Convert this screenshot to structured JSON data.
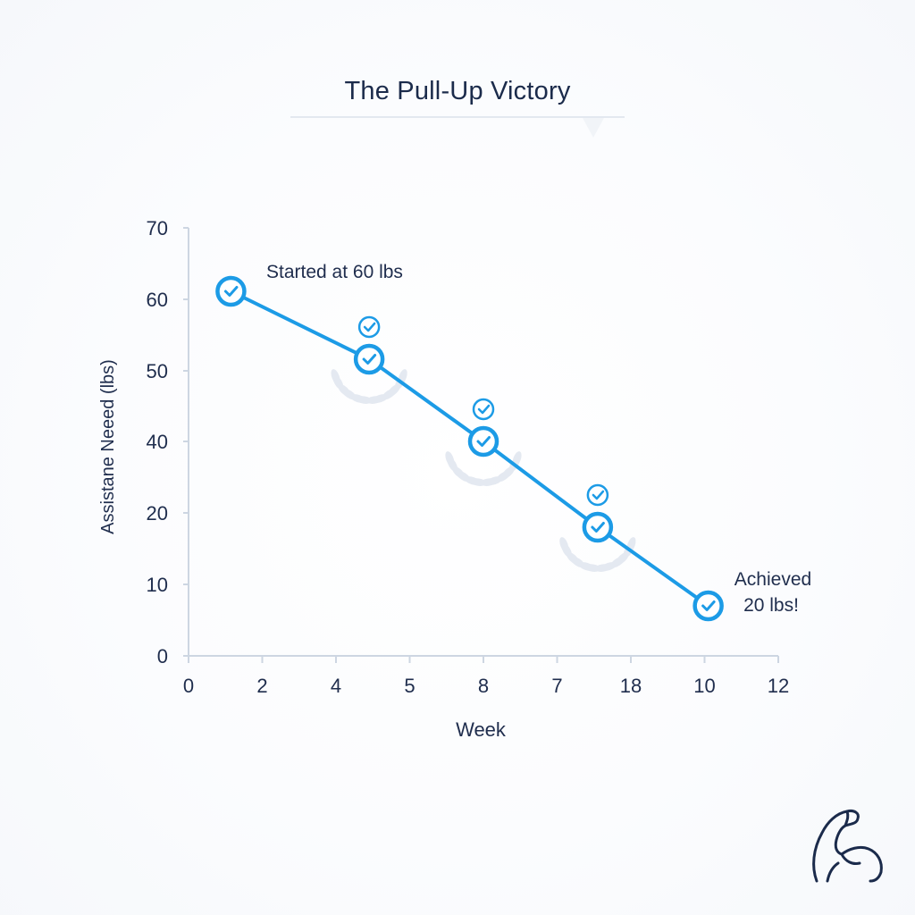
{
  "chart_data": {
    "type": "line",
    "title": "The Pull-Up Victory",
    "xlabel": "Week",
    "ylabel": "Assistane Neeed (lbs)",
    "x_tick_labels": [
      "0",
      "2",
      "4",
      "5",
      "8",
      "7",
      "18",
      "10",
      "12"
    ],
    "y_tick_labels": [
      "0",
      "10",
      "20",
      "40",
      "50",
      "60",
      "70"
    ],
    "x_positions": [
      1.15,
      4.9,
      8.0,
      11.1,
      14.1
    ],
    "x_range": [
      0,
      16
    ],
    "y_values": [
      61,
      51.5,
      40,
      18,
      7
    ],
    "y_tick_indices": [
      0,
      1,
      2,
      3,
      4,
      5,
      6
    ],
    "milestone_points": [
      1,
      2,
      3
    ],
    "annotations": [
      {
        "id": "start",
        "text": "Started at 60 lbs"
      },
      {
        "id": "end",
        "line1": "Achieved",
        "line2": "20 lbs!"
      }
    ],
    "colors": {
      "line": "#1c9be6",
      "axis": "#cdd6e2",
      "laurel": "#e4e9f1"
    }
  },
  "icons": {
    "corner": "flexed-bicep-icon",
    "marker": "check-circle-icon"
  }
}
